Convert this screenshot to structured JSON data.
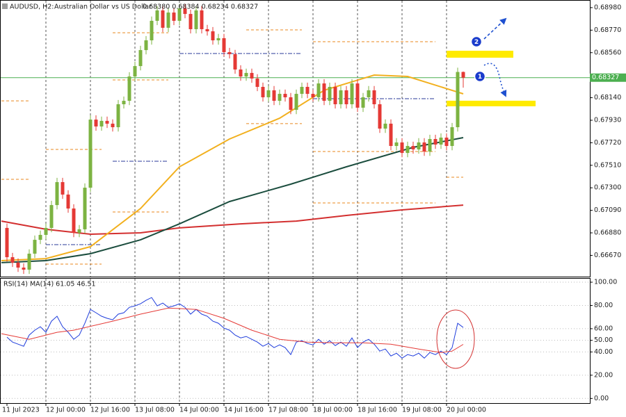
{
  "chart_data": [
    {
      "type": "candlestick",
      "title": "AUDUSD, H2:",
      "subtitle": "Australian Dollar vs US Dollar",
      "info": "0.68380 0.68384 0.68234 0.68327",
      "categories": [
        "11 Jul 2023",
        null,
        null,
        null,
        null,
        null,
        null,
        "12 Jul 00:00",
        null,
        null,
        null,
        null,
        null,
        null,
        null,
        "12 Jul 16:00",
        null,
        null,
        null,
        null,
        null,
        null,
        null,
        "13 Jul 08:00",
        null,
        null,
        null,
        null,
        null,
        null,
        null,
        "14 Jul 00:00",
        null,
        null,
        null,
        null,
        null,
        null,
        null,
        "14 Jul 16:00",
        null,
        null,
        null,
        null,
        null,
        null,
        null,
        "17 Jul 08:00",
        null,
        null,
        null,
        null,
        null,
        null,
        null,
        "18 Jul 00:00",
        null,
        null,
        null,
        null,
        null,
        null,
        null,
        "18 Jul 16:00",
        null,
        null,
        null,
        null,
        null,
        null,
        null,
        "19 Jul 08:00",
        null,
        null,
        null,
        null,
        null,
        null,
        null,
        "20 Jul 00:00",
        null,
        null,
        null
      ],
      "open": [
        0.66926,
        0.66653,
        0.66602,
        0.66556,
        0.66537,
        0.66686,
        0.66815,
        0.66861,
        0.66926,
        0.67139,
        0.67353,
        0.67237,
        0.67107,
        0.6688,
        0.66913,
        0.67301,
        0.67936,
        0.67872,
        0.67924,
        0.67898,
        0.67865,
        0.68079,
        0.68111,
        0.68338,
        0.68435,
        0.68584,
        0.68675,
        0.68857,
        0.68954,
        0.68792,
        0.68934,
        0.68857,
        0.68973,
        0.68921,
        0.68779,
        0.68954,
        0.68779,
        0.68759,
        0.68675,
        0.68695,
        0.68565,
        0.68546,
        0.68403,
        0.68338,
        0.68371,
        0.68319,
        0.68241,
        0.68144,
        0.68209,
        0.68111,
        0.68176,
        0.68144,
        0.68027,
        0.68176,
        0.68241,
        0.68176,
        0.68144,
        0.68273,
        0.68111,
        0.68241,
        0.68079,
        0.68209,
        0.68079,
        0.68273,
        0.68047,
        0.68144,
        0.68209,
        0.68079,
        0.67852,
        0.67898,
        0.6769,
        0.67723,
        0.67625,
        0.6769,
        0.67658,
        0.67723,
        0.67638,
        0.67755,
        0.67703,
        0.67768,
        0.6769,
        0.67865,
        0.6838
      ],
      "high": [
        0.66966,
        0.66693,
        0.66642,
        0.66596,
        0.66726,
        0.66855,
        0.66901,
        0.66966,
        0.67179,
        0.67393,
        0.67393,
        0.67277,
        0.67147,
        0.66953,
        0.67341,
        0.67976,
        0.67976,
        0.67964,
        0.67964,
        0.67938,
        0.68119,
        0.68151,
        0.68378,
        0.68475,
        0.68624,
        0.68715,
        0.68897,
        0.68994,
        0.68994,
        0.68974,
        0.68974,
        0.69013,
        0.69013,
        0.68961,
        0.68994,
        0.68994,
        0.68819,
        0.68799,
        0.68735,
        0.68735,
        0.68605,
        0.68586,
        0.68443,
        0.68411,
        0.68411,
        0.68359,
        0.68281,
        0.68249,
        0.68249,
        0.68216,
        0.68216,
        0.68184,
        0.68216,
        0.68281,
        0.68281,
        0.68216,
        0.68313,
        0.68313,
        0.68281,
        0.68281,
        0.68249,
        0.68249,
        0.68313,
        0.68313,
        0.68184,
        0.68249,
        0.68249,
        0.68119,
        0.67938,
        0.67938,
        0.67763,
        0.67763,
        0.6773,
        0.6773,
        0.67763,
        0.67763,
        0.67795,
        0.67795,
        0.67808,
        0.67808,
        0.67905,
        0.6842,
        0.68384
      ],
      "low": [
        0.66613,
        0.66562,
        0.66516,
        0.66497,
        0.66497,
        0.66646,
        0.66775,
        0.66821,
        0.66886,
        0.67099,
        0.67197,
        0.67067,
        0.6684,
        0.6684,
        0.66873,
        0.67261,
        0.67832,
        0.67832,
        0.67858,
        0.67825,
        0.67825,
        0.68039,
        0.68071,
        0.68298,
        0.68395,
        0.68544,
        0.68635,
        0.68817,
        0.68752,
        0.68752,
        0.68817,
        0.68817,
        0.68881,
        0.68739,
        0.68739,
        0.68739,
        0.68719,
        0.68635,
        0.68635,
        0.68525,
        0.68506,
        0.68363,
        0.68298,
        0.68298,
        0.68279,
        0.68201,
        0.68104,
        0.68104,
        0.68071,
        0.68071,
        0.68104,
        0.67987,
        0.67987,
        0.68136,
        0.68136,
        0.68104,
        0.68104,
        0.68071,
        0.68071,
        0.68039,
        0.68039,
        0.68039,
        0.68039,
        0.68007,
        0.68007,
        0.68104,
        0.68039,
        0.67812,
        0.67812,
        0.6765,
        0.6765,
        0.67585,
        0.67585,
        0.67618,
        0.67618,
        0.67598,
        0.67598,
        0.67663,
        0.67663,
        0.6765,
        0.6765,
        0.67825,
        0.68234
      ],
      "close": [
        0.66653,
        0.66602,
        0.66556,
        0.66537,
        0.66686,
        0.66815,
        0.66861,
        0.66926,
        0.67139,
        0.67353,
        0.67237,
        0.67107,
        0.6688,
        0.66913,
        0.67301,
        0.67936,
        0.67872,
        0.67924,
        0.67898,
        0.67865,
        0.68079,
        0.68111,
        0.68338,
        0.68435,
        0.68584,
        0.68675,
        0.68857,
        0.68954,
        0.68792,
        0.68934,
        0.68857,
        0.68973,
        0.68921,
        0.68779,
        0.68954,
        0.68779,
        0.68759,
        0.68675,
        0.68695,
        0.68565,
        0.68546,
        0.68403,
        0.68338,
        0.68371,
        0.68319,
        0.68241,
        0.68144,
        0.68209,
        0.68111,
        0.68176,
        0.68144,
        0.68027,
        0.68176,
        0.68241,
        0.68176,
        0.68144,
        0.68273,
        0.68111,
        0.68241,
        0.68079,
        0.68209,
        0.68079,
        0.68273,
        0.68047,
        0.68144,
        0.68209,
        0.68079,
        0.67852,
        0.67898,
        0.6769,
        0.67723,
        0.67625,
        0.6769,
        0.67658,
        0.67723,
        0.67638,
        0.67755,
        0.67703,
        0.67768,
        0.6769,
        0.67865,
        0.6838,
        0.68327
      ],
      "up_color": "#7cb342",
      "down_color": "#e53935",
      "overlays": [
        {
          "color": "#d32f2f",
          "x": [
            -1,
            7,
            15,
            24,
            31,
            42,
            52,
            61,
            71,
            82
          ],
          "values": [
            0.6699,
            0.66913,
            0.66867,
            0.6688,
            0.66926,
            0.66964,
            0.6699,
            0.67042,
            0.67094,
            0.67139
          ]
        },
        {
          "color": "#1b4d3e",
          "x": [
            -1,
            7,
            15,
            24,
            31,
            40,
            51,
            61,
            73,
            82
          ],
          "values": [
            0.66602,
            0.66621,
            0.66686,
            0.66815,
            0.66964,
            0.67172,
            0.67334,
            0.67496,
            0.67677,
            0.67768
          ]
        },
        {
          "color": "#f2b01e",
          "x": [
            -1,
            7,
            15,
            24,
            31,
            40,
            49,
            57,
            66,
            72,
            82
          ],
          "values": [
            0.66621,
            0.6664,
            0.66751,
            0.67107,
            0.67496,
            0.67755,
            0.67949,
            0.68209,
            0.68351,
            0.68338,
            0.68176
          ]
        }
      ],
      "levels": [
        {
          "x": [
            -1,
            4
          ],
          "value": 0.68111,
          "color": "#e8871e"
        },
        {
          "x": [
            -1,
            4
          ],
          "value": 0.67379,
          "color": "#e8871e"
        },
        {
          "x": [
            7,
            17
          ],
          "value": 0.67658,
          "color": "#e8871e"
        },
        {
          "x": [
            7,
            17
          ],
          "value": 0.6677,
          "color": "#2a3a9a"
        },
        {
          "x": [
            7,
            17
          ],
          "value": 0.66589,
          "color": "#e8871e"
        },
        {
          "x": [
            19,
            29
          ],
          "value": 0.68746,
          "color": "#e8871e"
        },
        {
          "x": [
            19,
            29
          ],
          "value": 0.68306,
          "color": "#e8871e"
        },
        {
          "x": [
            19,
            29
          ],
          "value": 0.67548,
          "color": "#2a3a9a"
        },
        {
          "x": [
            19,
            29
          ],
          "value": 0.67075,
          "color": "#e8871e"
        },
        {
          "x": [
            31,
            53
          ],
          "value": 0.68552,
          "color": "#2a3a9a"
        },
        {
          "x": [
            43,
            53
          ],
          "value": 0.68772,
          "color": "#e8871e"
        },
        {
          "x": [
            43,
            53
          ],
          "value": 0.67898,
          "color": "#e8871e"
        },
        {
          "x": [
            55,
            77
          ],
          "value": 0.68662,
          "color": "#e8871e"
        },
        {
          "x": [
            55,
            77
          ],
          "value": 0.68131,
          "color": "#2a3a9a"
        },
        {
          "x": [
            55,
            77
          ],
          "value": 0.67638,
          "color": "#e8871e"
        },
        {
          "x": [
            55,
            77
          ],
          "value": 0.67159,
          "color": "#e8871e"
        },
        {
          "x": [
            79,
            82
          ],
          "value": 0.67399,
          "color": "#e8871e"
        }
      ],
      "zones": [
        {
          "x": [
            79,
            91
          ],
          "range": [
            0.68513,
            0.68578
          ],
          "color": "#ffeb00"
        },
        {
          "x": [
            79,
            95
          ],
          "range": [
            0.6806,
            0.68112
          ],
          "color": "#ffeb00"
        }
      ],
      "current_price_color": "#4caf50",
      "annotations": [
        "1",
        "2"
      ],
      "ylim": [
        0.66472,
        0.69051
      ],
      "yticks": [
        {
          "value": 0.6898,
          "label": "0.68980"
        },
        {
          "value": 0.6877,
          "label": "0.68770"
        },
        {
          "value": 0.6856,
          "label": "0.68560"
        },
        {
          "value": 0.6814,
          "label": "0.68140"
        },
        {
          "value": 0.6793,
          "label": "0.67930"
        },
        {
          "value": 0.6772,
          "label": "0.67720"
        },
        {
          "value": 0.6751,
          "label": "0.67510"
        },
        {
          "value": 0.673,
          "label": "0.67300"
        },
        {
          "value": 0.6709,
          "label": "0.67090"
        },
        {
          "value": 0.6688,
          "label": "0.66880"
        },
        {
          "value": 0.6667,
          "label": "0.66670"
        }
      ],
      "grid": true
    },
    {
      "type": "line",
      "title": "RSI(14) MA(14) 61.05 46.51",
      "series": [
        {
          "color": "#1e3cdc",
          "values": [
            52.7,
            48.5,
            46.7,
            44.9,
            54.5,
            58.7,
            61.7,
            56.9,
            66.5,
            70.7,
            61.7,
            56.9,
            50.9,
            54.5,
            64.7,
            76.6,
            73.7,
            70.7,
            68.9,
            67.7,
            72.5,
            73.7,
            78.4,
            79.6,
            81.4,
            84.4,
            86.8,
            79.6,
            82,
            78.4,
            79.6,
            81.4,
            78.4,
            72.5,
            76.6,
            72.5,
            70.7,
            66.5,
            64.7,
            60.5,
            58.7,
            54.5,
            52.1,
            53.3,
            50.9,
            48.5,
            44.9,
            47.3,
            43.7,
            46.1,
            43.7,
            37.7,
            48.5,
            49.7,
            47.3,
            46.1,
            50.9,
            46.7,
            49.7,
            45.5,
            48.5,
            44.9,
            52.1,
            43.7,
            48.5,
            50.9,
            46.7,
            40.7,
            42.5,
            36.5,
            38.9,
            34.7,
            37.7,
            36.5,
            38.9,
            34.7,
            39.5,
            37.7,
            40.7,
            37.7,
            43.7,
            64.7,
            61.05
          ]
        },
        {
          "color": "#e53935",
          "x": [
            -1,
            4,
            9,
            12,
            19,
            24,
            29,
            34,
            39,
            44,
            49,
            54,
            59,
            64,
            69,
            74,
            78,
            80,
            82
          ],
          "values": [
            55.7,
            50.9,
            56.9,
            58.7,
            66.5,
            72.5,
            77.8,
            76.6,
            68.9,
            58.7,
            50.9,
            48.5,
            47.9,
            47.9,
            46.7,
            42.5,
            39.5,
            40.7,
            46.51
          ]
        }
      ],
      "ylim": [
        -4,
        103.6
      ],
      "yticks": [
        {
          "value": 100,
          "label": "100.00"
        },
        {
          "value": 80,
          "label": "80.00"
        },
        {
          "value": 60,
          "label": "60.00"
        },
        {
          "value": 50,
          "label": "50.00"
        },
        {
          "value": 40,
          "label": "40.00"
        },
        {
          "value": 20,
          "label": "20.00"
        },
        {
          "value": 0,
          "label": "0.00"
        }
      ],
      "grid": true
    }
  ]
}
